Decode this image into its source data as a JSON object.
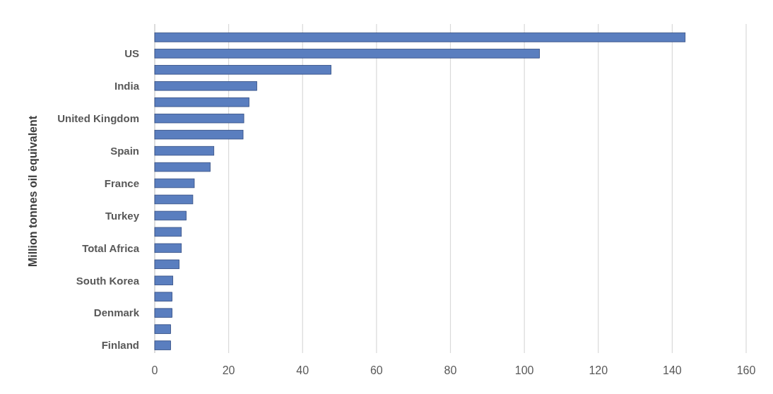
{
  "chart_data": {
    "type": "bar",
    "orientation": "horizontal",
    "ylabel": "Million  tonnes  oil equivalent",
    "categories": [
      null,
      "US",
      null,
      "India",
      null,
      "United Kingdom",
      null,
      "Spain",
      null,
      "France",
      null,
      "Turkey",
      null,
      "Total Africa",
      null,
      "South Korea",
      null,
      "Denmark",
      null,
      "Finland"
    ],
    "values": [
      143.5,
      104.1,
      47.7,
      27.6,
      25.5,
      24.1,
      23.9,
      16.0,
      15.0,
      10.7,
      10.3,
      8.5,
      7.2,
      7.2,
      6.6,
      4.9,
      4.7,
      4.7,
      4.3,
      4.3
    ],
    "color": "#5a7ebf",
    "xlim": [
      0,
      160
    ],
    "xticks": [
      0,
      20,
      40,
      60,
      80,
      100,
      120,
      140,
      160
    ],
    "grid": "x"
  }
}
